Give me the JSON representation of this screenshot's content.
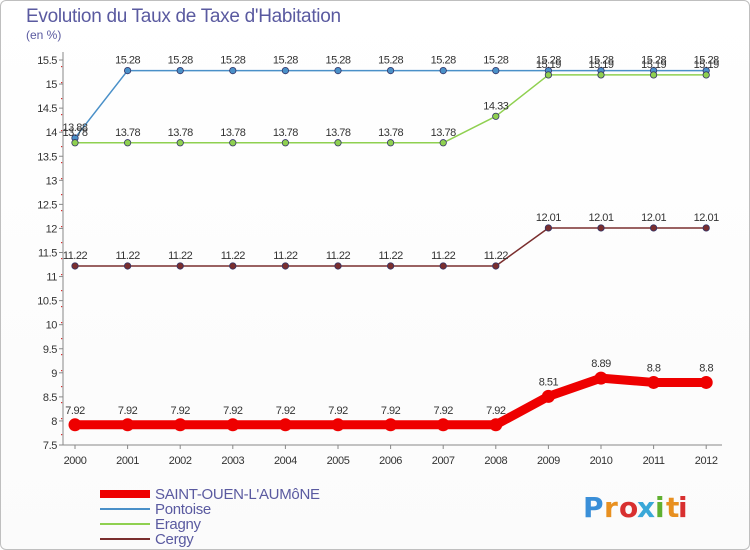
{
  "chart_data": {
    "type": "line",
    "title": "Evolution du Taux de Taxe d'Habitation",
    "ylabel": "(en %)",
    "categories": [
      "2000",
      "2001",
      "2002",
      "2003",
      "2004",
      "2005",
      "2006",
      "2007",
      "2008",
      "2009",
      "2010",
      "2011",
      "2012"
    ],
    "ylim": [
      7.5,
      15.5
    ],
    "yticks": [
      "7.5",
      "8",
      "8.5",
      "9",
      "9.5",
      "10",
      "10.5",
      "11",
      "11.5",
      "12",
      "12.5",
      "13",
      "13.5",
      "14",
      "14.5",
      "15",
      "15.5"
    ],
    "grid": false,
    "series": [
      {
        "name": "SAINT-OUEN-L'AUMôNE",
        "color": "#ee0000",
        "values": [
          7.92,
          7.92,
          7.92,
          7.92,
          7.92,
          7.92,
          7.92,
          7.92,
          7.92,
          8.51,
          8.89,
          8.8,
          8.8
        ],
        "labels": [
          "7.92",
          "7.92",
          "7.92",
          "7.92",
          "7.92",
          "7.92",
          "7.92",
          "7.92",
          "7.92",
          "8.51",
          "8.89",
          "8.8",
          "8.8"
        ]
      },
      {
        "name": "Pontoise",
        "color": "#4a90c8",
        "values": [
          13.88,
          15.28,
          15.28,
          15.28,
          15.28,
          15.28,
          15.28,
          15.28,
          15.28,
          15.28,
          15.28,
          15.28,
          15.28
        ],
        "labels": [
          "13.88",
          "15.28",
          "15.28",
          "15.28",
          "15.28",
          "15.28",
          "15.28",
          "15.28",
          "15.28",
          "15.28",
          "15.28",
          "15.28",
          "15.28"
        ]
      },
      {
        "name": "Eragny",
        "color": "#8fd050",
        "values": [
          13.78,
          13.78,
          13.78,
          13.78,
          13.78,
          13.78,
          13.78,
          13.78,
          14.33,
          15.19,
          15.19,
          15.19,
          15.19
        ],
        "labels": [
          "13.78",
          "13.78",
          "13.78",
          "13.78",
          "13.78",
          "13.78",
          "13.78",
          "13.78",
          "14.33",
          "15.19",
          "15.19",
          "15.19",
          "15.19"
        ]
      },
      {
        "name": "Cergy",
        "color": "#7a2e2e",
        "values": [
          11.22,
          11.22,
          11.22,
          11.22,
          11.22,
          11.22,
          11.22,
          11.22,
          11.22,
          12.01,
          12.01,
          12.01,
          12.01
        ],
        "labels": [
          "11.22",
          "11.22",
          "11.22",
          "11.22",
          "11.22",
          "11.22",
          "11.22",
          "11.22",
          "11.22",
          "12.01",
          "12.01",
          "12.01",
          "12.01"
        ]
      }
    ],
    "legend": "bottom-left"
  },
  "logo": {
    "text": "Proxiti",
    "colors": [
      "#3a8fd8",
      "#e89020",
      "#d83030",
      "#3aa8d8",
      "#60b030",
      "#e89020",
      "#d83030"
    ]
  }
}
